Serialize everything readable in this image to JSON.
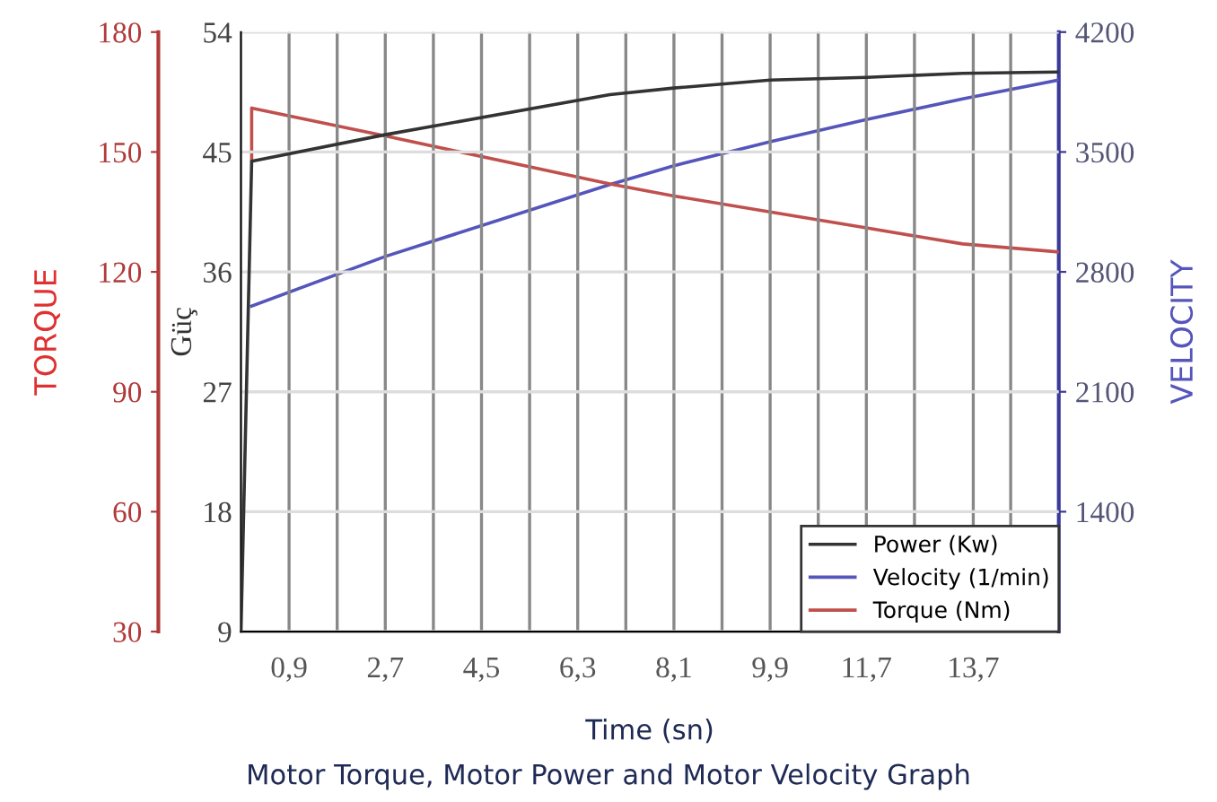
{
  "chart_data": {
    "type": "line",
    "xlabel": "Time (sn)",
    "ylabel": "Güç",
    "y2label": "VELOCITY",
    "y3label": "TORQUE",
    "annotations": [
      "Motor Torque, Motor Power and Motor Velocity Graph"
    ],
    "xlim": [
      0,
      15.3
    ],
    "xticks": [
      {
        "value": 0.9,
        "label": "0,9"
      },
      {
        "value": 1.8,
        "label": null
      },
      {
        "value": 2.7,
        "label": "2,7"
      },
      {
        "value": 3.6,
        "label": null
      },
      {
        "value": 4.5,
        "label": "4,5"
      },
      {
        "value": 5.4,
        "label": null
      },
      {
        "value": 6.3,
        "label": "6,3"
      },
      {
        "value": 7.2,
        "label": null
      },
      {
        "value": 8.1,
        "label": "8,1"
      },
      {
        "value": 9.0,
        "label": null
      },
      {
        "value": 9.9,
        "label": "9,9"
      },
      {
        "value": 10.8,
        "label": null
      },
      {
        "value": 11.7,
        "label": "11,7"
      },
      {
        "value": 12.6,
        "label": null
      },
      {
        "value": 13.7,
        "label": "13,7"
      },
      {
        "value": 14.4,
        "label": null
      }
    ],
    "ylim": [
      9,
      54
    ],
    "yticks": [
      9,
      18,
      27,
      36,
      45,
      54
    ],
    "y2lim": [
      700,
      4200
    ],
    "y2ticks": [
      1400,
      2100,
      2800,
      3500,
      4200
    ],
    "y3lim": [
      30,
      180
    ],
    "y3ticks": [
      30,
      60,
      90,
      120,
      150,
      180
    ],
    "grid": true,
    "legend": "bottom right",
    "line_style": "solid",
    "series": [
      {
        "name": "Power (Kw)",
        "color": "#333333",
        "axis": "y",
        "x": [
          0,
          0.2,
          2.7,
          6.9,
          8.1,
          9.9,
          11.7,
          13.5,
          15.3
        ],
        "values": [
          9,
          44.3,
          46.3,
          49.3,
          49.8,
          50.4,
          50.6,
          50.9,
          51.0
        ]
      },
      {
        "name": "Velocity (1/min)",
        "color": "#5555bb",
        "axis": "y2",
        "x": [
          0.2,
          2.7,
          6.9,
          8.1,
          9.9,
          11.7,
          13.5,
          15.3
        ],
        "values": [
          2600,
          2890,
          3310,
          3420,
          3560,
          3690,
          3810,
          3920
        ]
      },
      {
        "name": "Torque (Nm)",
        "color": "#c0504d",
        "axis": "y3",
        "x": [
          0.2,
          0.2,
          2.7,
          6.9,
          8.1,
          9.9,
          11.7,
          13.5,
          15.3
        ],
        "values": [
          148,
          161,
          154,
          142,
          139,
          135,
          131,
          127,
          125
        ]
      }
    ]
  }
}
